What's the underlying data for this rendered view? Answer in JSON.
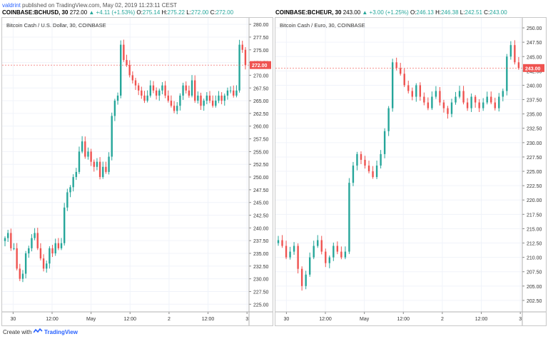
{
  "publish": {
    "user": "valdrint",
    "text": "published on TradingView.com, May 02, 2019 11:23:11 CEST"
  },
  "footer": {
    "prefix": "Create with",
    "brand": "TradingView"
  },
  "colors": {
    "up": "#26a69a",
    "down": "#ef5350",
    "price_tag": "#ef5350",
    "link": "#2962ff"
  },
  "chart_data": [
    {
      "type": "candlestick",
      "header": {
        "symbol": "COINBASE:BCHUSD, 30",
        "last": "272.00",
        "change": "▲ +4.11 (+1.53%)",
        "o_label": "O:",
        "o": "275.14",
        "h_label": "H:",
        "h": "275.22",
        "l_label": "L:",
        "l": "272.00",
        "c_label": "C:",
        "c": "272.00"
      },
      "title": "Bitcoin Cash / U.S. Dollar, 30, COINBASE",
      "price_tag": "272.00",
      "ylim": [
        223.5,
        281
      ],
      "y_ticks": [
        "225.00",
        "227.50",
        "230.00",
        "232.50",
        "235.00",
        "237.50",
        "240.00",
        "242.50",
        "245.00",
        "247.50",
        "250.00",
        "252.50",
        "255.00",
        "257.50",
        "260.00",
        "262.50",
        "265.00",
        "267.50",
        "270.00",
        "272.50",
        "275.00",
        "277.50",
        "280.00"
      ],
      "x_ticks": [
        {
          "label": "30",
          "idx": 5
        },
        {
          "label": "12:00",
          "idx": 29
        },
        {
          "label": "May",
          "idx": 53
        },
        {
          "label": "12:00",
          "idx": 77
        },
        {
          "label": "2",
          "idx": 101
        },
        {
          "label": "12:00",
          "idx": 125
        },
        {
          "label": "3",
          "idx": 149
        }
      ],
      "closes": [
        238,
        239,
        236,
        236,
        232,
        230,
        231,
        235,
        236,
        238,
        239,
        236,
        234,
        232,
        233,
        236,
        235,
        237,
        236,
        237,
        244,
        247,
        248,
        250,
        251,
        255,
        257,
        254,
        255,
        253,
        252,
        253,
        250,
        252,
        251,
        254,
        262,
        265,
        266,
        276,
        273,
        272,
        270,
        269,
        268,
        267,
        266,
        265,
        266,
        268,
        267,
        266,
        267,
        268,
        266,
        265,
        264,
        263,
        264,
        266,
        268,
        267,
        266,
        269,
        265,
        266,
        264,
        265,
        266,
        265,
        264,
        265,
        266,
        265,
        266,
        267,
        267,
        266,
        267,
        276,
        275,
        272
      ]
    },
    {
      "type": "candlestick",
      "header": {
        "symbol": "COINBASE:BCHEUR, 30",
        "last": "243.00",
        "change": "▲ +3.00 (+1.25%)",
        "o_label": "O:",
        "o": "246.13",
        "h_label": "H:",
        "h": "246.38",
        "l_label": "L:",
        "l": "242.51",
        "c_label": "C:",
        "c": "243.00"
      },
      "title": "Bitcoin Cash / Euro, 30, COINBASE",
      "price_tag": "243.00",
      "ylim": [
        200.5,
        251.5
      ],
      "y_ticks": [
        "202.50",
        "205.00",
        "207.50",
        "210.00",
        "212.50",
        "215.00",
        "217.50",
        "220.00",
        "222.50",
        "225.00",
        "227.50",
        "230.00",
        "232.50",
        "235.00",
        "237.50",
        "240.00",
        "242.50",
        "245.00",
        "247.50",
        "250.00"
      ],
      "x_ticks": [
        {
          "label": "30",
          "idx": 5
        },
        {
          "label": "12:00",
          "idx": 29
        },
        {
          "label": "May",
          "idx": 53
        },
        {
          "label": "12:00",
          "idx": 77
        },
        {
          "label": "2",
          "idx": 101
        },
        {
          "label": "12:00",
          "idx": 125
        },
        {
          "label": "3",
          "idx": 149
        }
      ],
      "closes": [
        213,
        212,
        210,
        211,
        212,
        208,
        205,
        207,
        210,
        212,
        213,
        211,
        209,
        210,
        212,
        211,
        210,
        211,
        223,
        226,
        228,
        227,
        226,
        225,
        224,
        226,
        228,
        232,
        236,
        244,
        243,
        242,
        240,
        239,
        238,
        240,
        238,
        237,
        236,
        238,
        239,
        237,
        236,
        235,
        237,
        238,
        239,
        237,
        236,
        238,
        237,
        236,
        237,
        238,
        237,
        236,
        238,
        239,
        245,
        247,
        244,
        243
      ]
    }
  ]
}
